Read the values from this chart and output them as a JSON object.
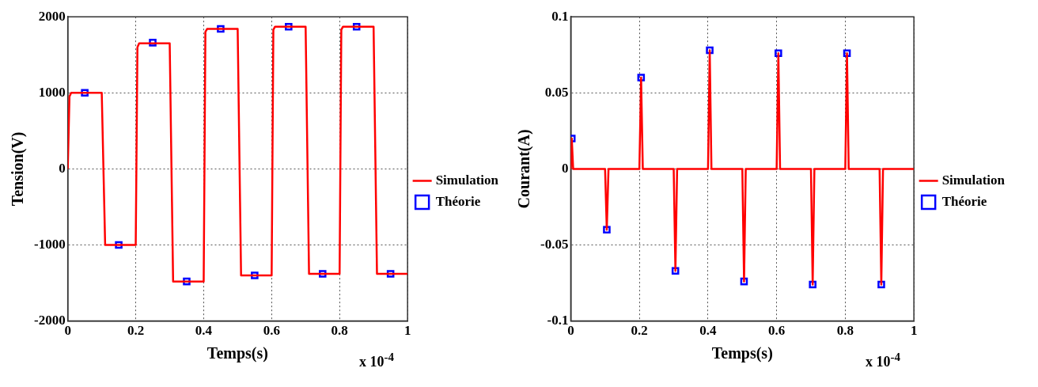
{
  "chart_data": [
    {
      "type": "line",
      "xlabel": "Temps(s)",
      "ylabel": "Tension(V)",
      "xlim": [
        0,
        1
      ],
      "xticks": [
        0,
        0.2,
        0.4,
        0.6,
        0.8,
        1
      ],
      "ylim": [
        -2000,
        2000
      ],
      "yticks": [
        -2000,
        -1000,
        0,
        1000,
        2000
      ],
      "grid": true,
      "legend": "right",
      "annotations": [
        "x 10$^{-4}$"
      ],
      "series": [
        {
          "name": "Simulation",
          "color": "#ff0000",
          "marker": "none",
          "line_style": "solid",
          "x": [
            0,
            0.005,
            0.01,
            0.1,
            0.11,
            0.2,
            0.205,
            0.21,
            0.3,
            0.31,
            0.4,
            0.405,
            0.41,
            0.5,
            0.51,
            0.6,
            0.605,
            0.61,
            0.7,
            0.71,
            0.8,
            0.805,
            0.81,
            0.9,
            0.91,
            1
          ],
          "values": [
            0,
            950,
            1000,
            1000,
            -1000,
            -1000,
            1600,
            1650,
            1650,
            -1480,
            -1480,
            1800,
            1840,
            1840,
            -1400,
            -1400,
            1830,
            1870,
            1870,
            -1380,
            -1380,
            1830,
            1870,
            1870,
            -1380,
            -1380
          ]
        },
        {
          "name": "Théorie",
          "type": "scatter",
          "color": "#0000ff",
          "marker": "square",
          "x": [
            0.05,
            0.15,
            0.25,
            0.35,
            0.45,
            0.55,
            0.65,
            0.75,
            0.85,
            0.95
          ],
          "values": [
            1000,
            -1000,
            1660,
            -1480,
            1840,
            -1400,
            1870,
            -1380,
            1870,
            -1380
          ]
        }
      ]
    },
    {
      "type": "line",
      "xlabel": "Temps(s)",
      "ylabel": "Courant(A)",
      "xlim": [
        0,
        1
      ],
      "xticks": [
        0,
        0.2,
        0.4,
        0.6,
        0.8,
        1
      ],
      "ylim": [
        -0.1,
        0.1
      ],
      "yticks": [
        -0.1,
        -0.05,
        0,
        0.05,
        0.1
      ],
      "grid": true,
      "legend": "right",
      "annotations": [
        "x 10$^{-4}$"
      ],
      "series": [
        {
          "name": "Simulation",
          "color": "#ff0000",
          "marker": "none",
          "line_style": "solid",
          "x": [
            0,
            0.003,
            0.007,
            0.1,
            0.105,
            0.11,
            0.2,
            0.205,
            0.21,
            0.3,
            0.305,
            0.31,
            0.4,
            0.405,
            0.41,
            0.5,
            0.505,
            0.51,
            0.6,
            0.605,
            0.61,
            0.7,
            0.705,
            0.71,
            0.8,
            0.805,
            0.81,
            0.9,
            0.905,
            0.91,
            1
          ],
          "values": [
            0,
            0.02,
            0,
            0,
            -0.04,
            0,
            0,
            0.06,
            0,
            0,
            -0.067,
            0,
            0,
            0.078,
            0,
            0,
            -0.074,
            0,
            0,
            0.076,
            0,
            0,
            -0.076,
            0,
            0,
            0.076,
            0,
            0,
            -0.076,
            0,
            0
          ]
        },
        {
          "name": "Théorie",
          "type": "scatter",
          "color": "#0000ff",
          "marker": "square",
          "x": [
            0.003,
            0.105,
            0.205,
            0.305,
            0.405,
            0.505,
            0.605,
            0.705,
            0.805,
            0.905
          ],
          "values": [
            0.02,
            -0.04,
            0.06,
            -0.067,
            0.078,
            -0.074,
            0.076,
            -0.076,
            0.076,
            -0.076
          ]
        }
      ]
    }
  ]
}
